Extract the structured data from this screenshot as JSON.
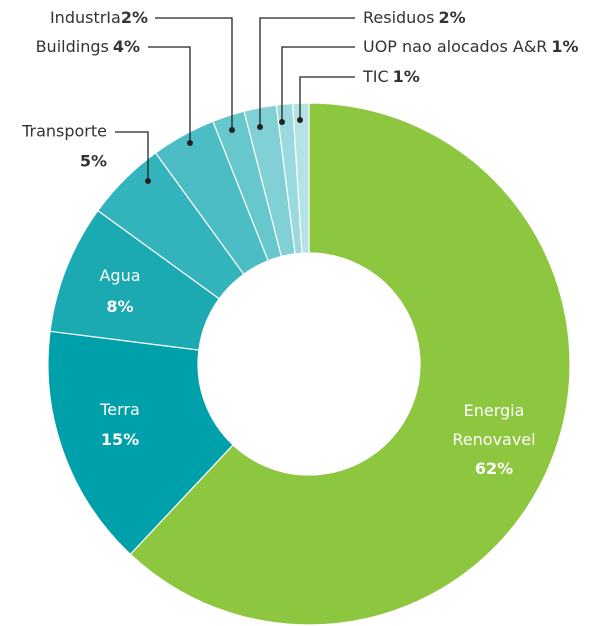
{
  "chart_data": {
    "type": "donut",
    "categories": [
      "Energia Renovavel",
      "Terra",
      "Agua",
      "Transporte",
      "Buildings",
      "IndustrIa",
      "Residuos",
      "UOP nao alocados A&R",
      "TIC"
    ],
    "values": [
      62,
      15,
      8,
      5,
      4,
      2,
      2,
      1,
      1
    ],
    "value_labels": [
      "62%",
      "15%",
      "8%",
      "5%",
      "4%",
      "2%",
      "2%",
      "1%",
      "1%"
    ],
    "colors": [
      "#8dc63f",
      "#00a0aa",
      "#1ba9b2",
      "#33b3bc",
      "#4dbdc5",
      "#66c7cd",
      "#80d0d5",
      "#9ad9dd",
      "#b4e3e6"
    ]
  }
}
